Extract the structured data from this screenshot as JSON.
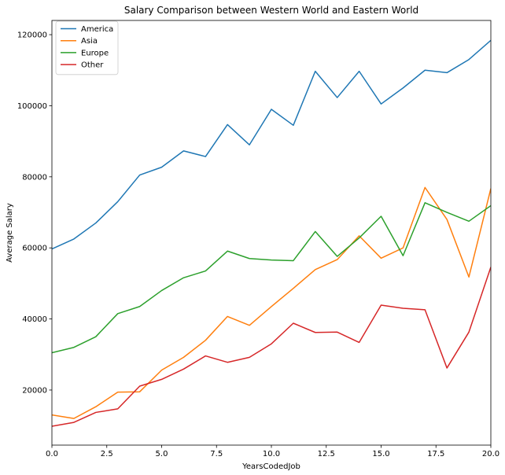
{
  "chart_data": {
    "type": "line",
    "title": "Salary Comparison between Western World and Eastern World",
    "xlabel": "YearsCodedJob",
    "ylabel": "Average Salary",
    "xlim": [
      0,
      20
    ],
    "ylim": [
      4500,
      124000
    ],
    "xticks": [
      0,
      2.5,
      5,
      7.5,
      10,
      12.5,
      15,
      17.5,
      20
    ],
    "xtick_labels": [
      "0.0",
      "2.5",
      "5.0",
      "7.5",
      "10.0",
      "12.5",
      "15.0",
      "17.5",
      "20.0"
    ],
    "yticks": [
      20000,
      40000,
      60000,
      80000,
      100000,
      120000
    ],
    "ytick_labels": [
      "20000",
      "40000",
      "60000",
      "80000",
      "100000",
      "120000"
    ],
    "grid": false,
    "legend_position": "top-left",
    "x": [
      0,
      1,
      2,
      3,
      4,
      5,
      6,
      7,
      8,
      9,
      10,
      11,
      12,
      13,
      14,
      15,
      16,
      17,
      18,
      19,
      20
    ],
    "series": [
      {
        "name": "America",
        "color": "#1f77b4",
        "values": [
          59700,
          62500,
          67000,
          73000,
          80500,
          82700,
          87300,
          85700,
          94700,
          89000,
          99000,
          94500,
          109700,
          102300,
          109700,
          100500,
          105000,
          110000,
          109300,
          113000,
          118400
        ]
      },
      {
        "name": "Asia",
        "color": "#ff7f0e",
        "values": [
          13000,
          12000,
          15300,
          19400,
          19500,
          25600,
          29200,
          34000,
          40700,
          38200,
          43500,
          48600,
          53900,
          56700,
          63400,
          57100,
          60000,
          77000,
          68000,
          51800,
          76700
        ]
      },
      {
        "name": "Europe",
        "color": "#2ca02c",
        "values": [
          30500,
          32000,
          35000,
          41500,
          43500,
          48000,
          51600,
          53500,
          59100,
          57000,
          56600,
          56400,
          64600,
          57600,
          62800,
          68900,
          57800,
          72700,
          70000,
          67500,
          71900
        ]
      },
      {
        "name": "Other",
        "color": "#d62728",
        "values": [
          9800,
          10900,
          13700,
          14700,
          21100,
          23000,
          25900,
          29600,
          27800,
          29200,
          33000,
          38800,
          36200,
          36300,
          33400,
          43900,
          43000,
          42600,
          26200,
          36300,
          54600
        ]
      }
    ]
  }
}
